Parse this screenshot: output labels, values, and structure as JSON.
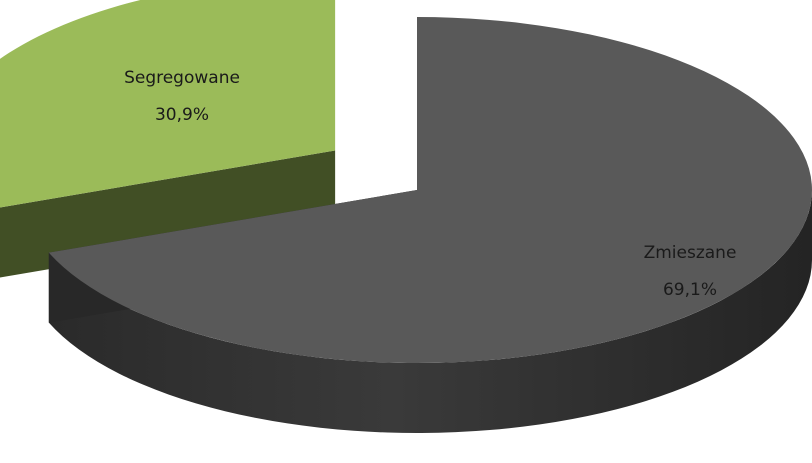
{
  "chart_data": {
    "type": "pie",
    "title": "",
    "series": [
      {
        "values": [
          69.1,
          30.9
        ]
      }
    ],
    "slices": [
      {
        "name": "Zmieszane",
        "value": 69.1,
        "value_label": "69,1%",
        "color": "#595959",
        "exploded": false
      },
      {
        "name": "Segregowane",
        "value": 30.9,
        "value_label": "30,9%",
        "color": "#9bbb59",
        "exploded": true
      }
    ],
    "legend": "none",
    "style": "3d-exploded"
  }
}
